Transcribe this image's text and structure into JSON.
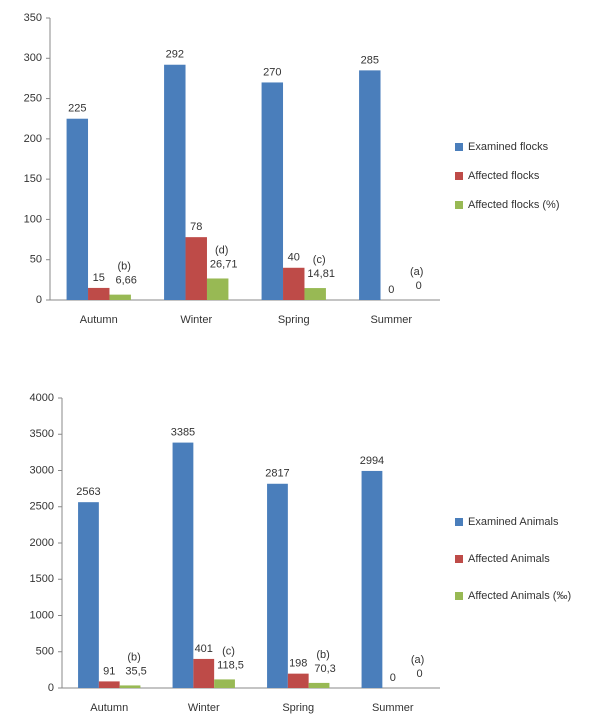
{
  "chart_data": [
    {
      "type": "bar",
      "categories": [
        "Autumn",
        "Winter",
        "Spring",
        "Summer"
      ],
      "series": [
        {
          "name": "Examined flocks",
          "color": "#4a7ebb",
          "values": [
            225,
            292,
            270,
            285
          ]
        },
        {
          "name": "Affected flocks",
          "color": "#be4b48",
          "values": [
            15,
            78,
            40,
            0
          ]
        },
        {
          "name": "Affected flocks (%)",
          "color": "#98b954",
          "values": [
            6.66,
            26.71,
            14.81,
            0
          ],
          "value_labels": [
            "6,66",
            "26,71",
            "14,81",
            "0"
          ]
        }
      ],
      "annotations": [
        "(b)",
        "(d)",
        "(c)",
        "(a)"
      ],
      "ylim": [
        0,
        350
      ],
      "yticks": [
        0,
        50,
        100,
        150,
        200,
        250,
        300,
        350
      ],
      "legend": "right"
    },
    {
      "type": "bar",
      "categories": [
        "Autumn",
        "Winter",
        "Spring",
        "Summer"
      ],
      "series": [
        {
          "name": "Examined Animals",
          "color": "#4a7ebb",
          "values": [
            2563,
            3385,
            2817,
            2994
          ]
        },
        {
          "name": "Affected Animals",
          "color": "#be4b48",
          "values": [
            91,
            401,
            198,
            0
          ]
        },
        {
          "name": "Affected Animals (‰)",
          "color": "#98b954",
          "values": [
            35.5,
            118.5,
            70.3,
            0
          ],
          "value_labels": [
            "35,5",
            "118,5",
            "70,3",
            "0"
          ]
        }
      ],
      "annotations": [
        "(b)",
        "(c)",
        "(b)",
        "(a)"
      ],
      "ylim": [
        0,
        4000
      ],
      "yticks": [
        0,
        500,
        1000,
        1500,
        2000,
        2500,
        3000,
        3500,
        4000
      ],
      "legend": "right"
    }
  ]
}
